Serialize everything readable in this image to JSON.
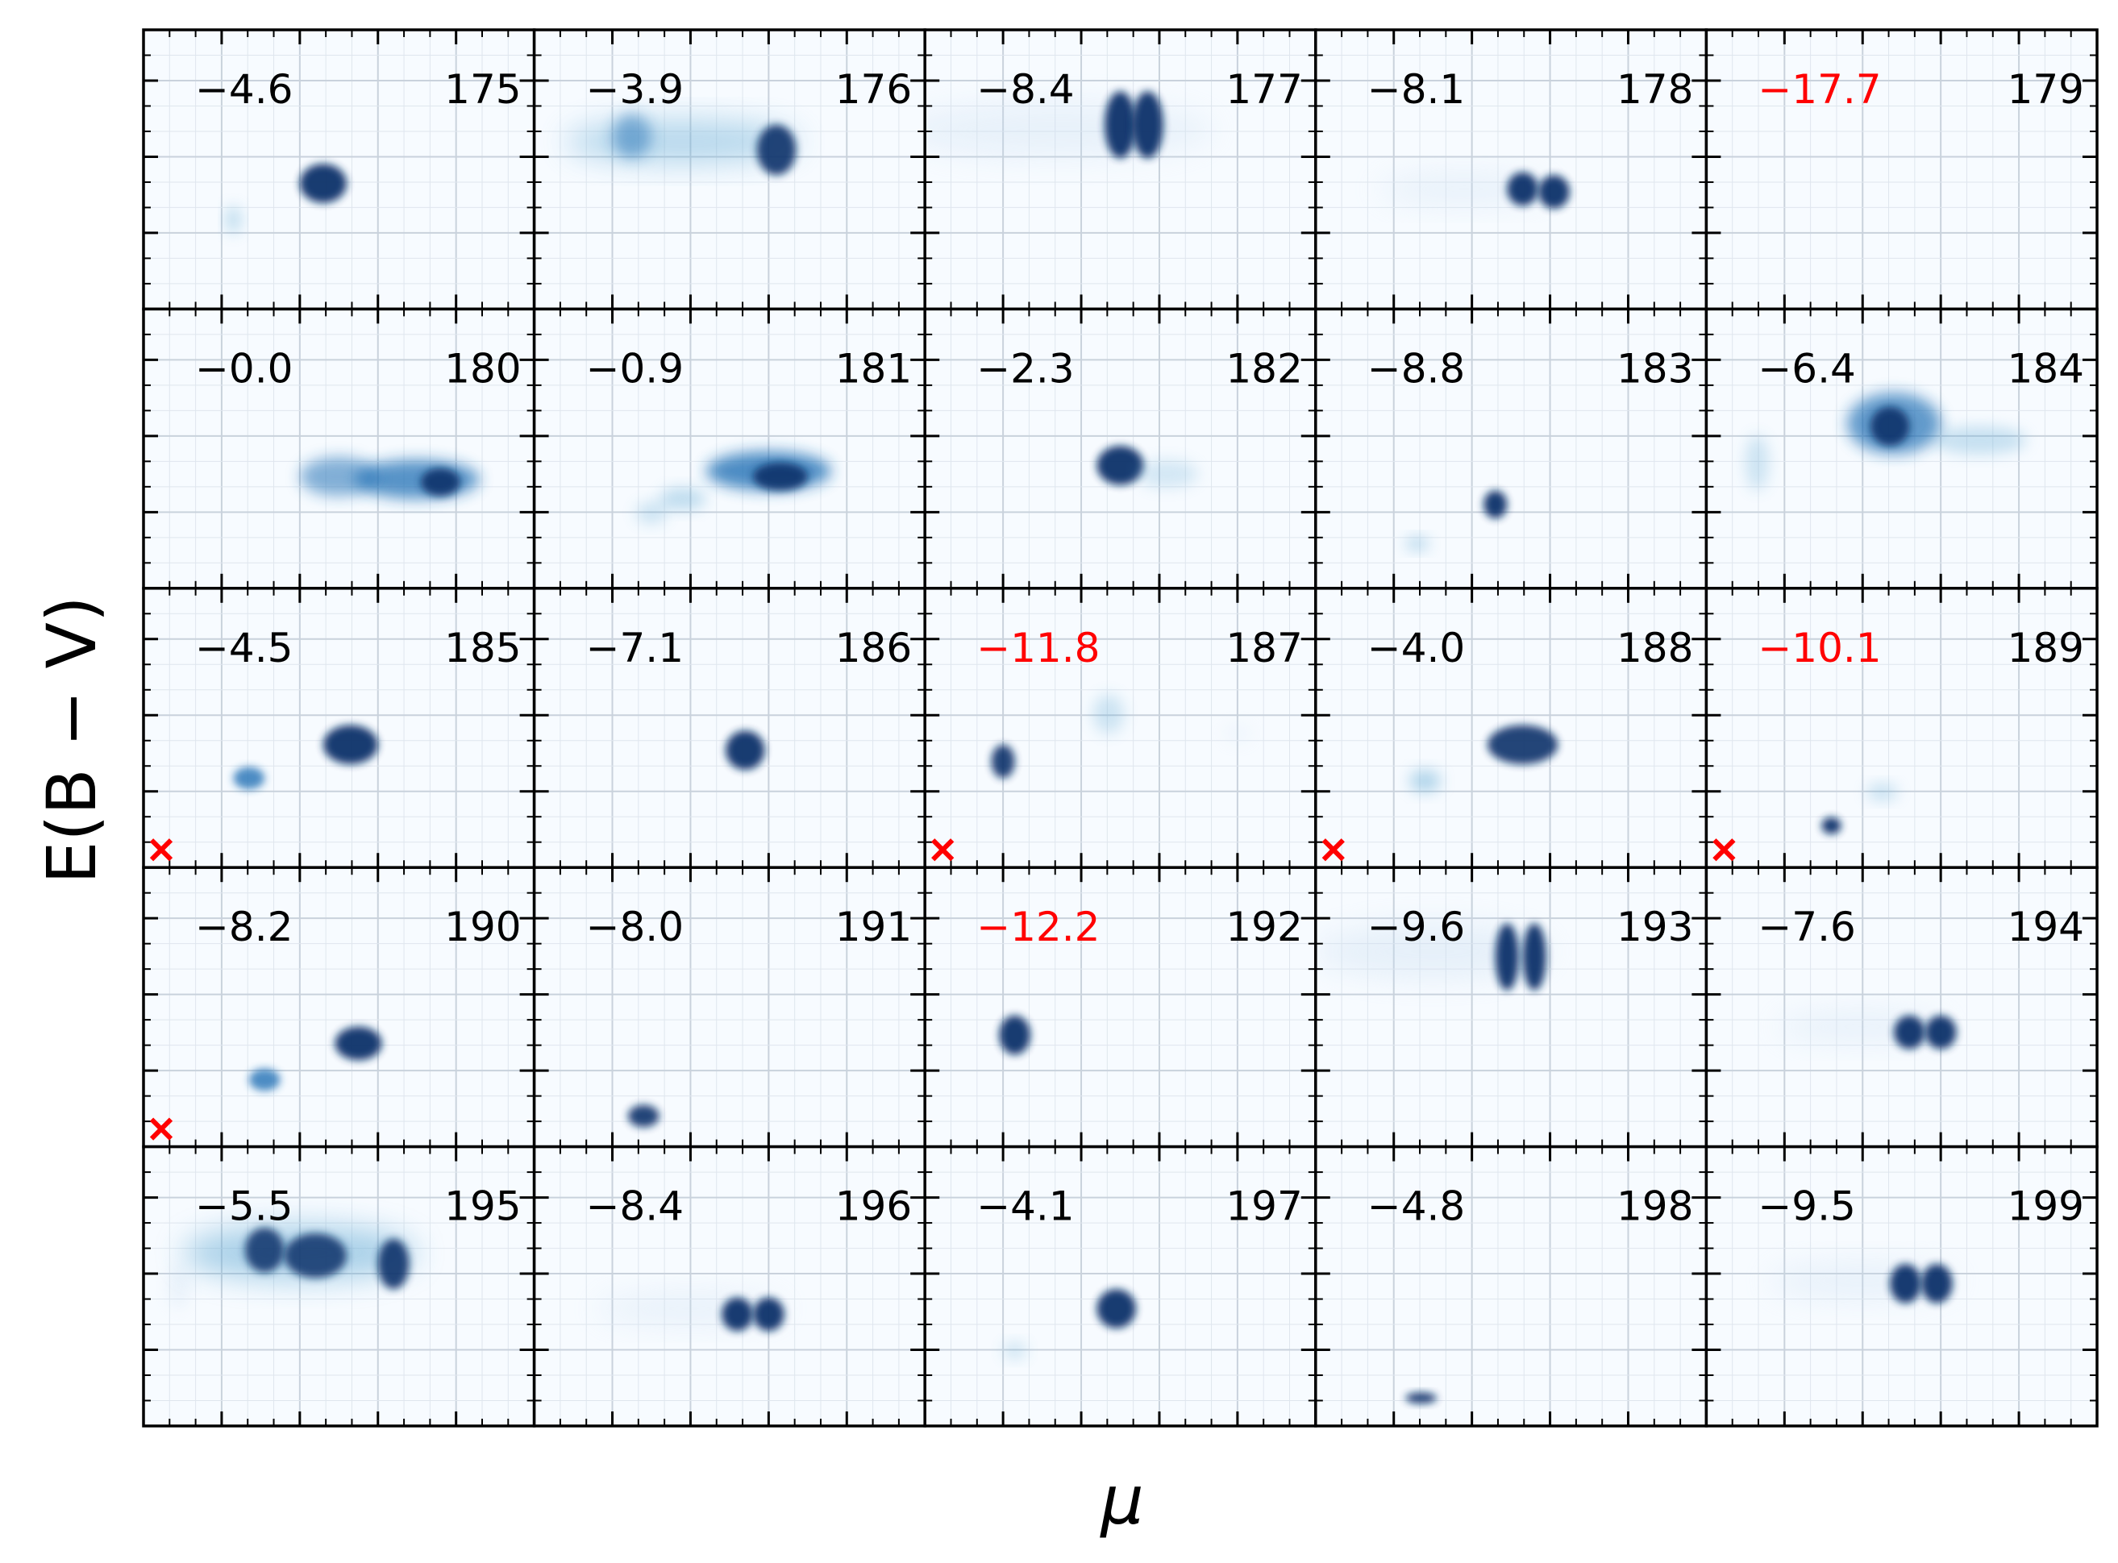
{
  "figure": {
    "xlabel": "μ",
    "ylabel": "E(B − V)",
    "colormap": "Blues",
    "colors": {
      "highlight": "#ff0000",
      "normal": "#000000",
      "peak": "#08306b",
      "low": "#f7fbff",
      "marker": "#ff0000"
    }
  },
  "chart_data": {
    "type": "heatmap",
    "grid": {
      "rows": 5,
      "cols": 5
    },
    "tick_labels_shown": false,
    "panels": [
      {
        "id": "175",
        "value": "−4.6",
        "highlight": false,
        "marker": false
      },
      {
        "id": "176",
        "value": "−3.9",
        "highlight": false,
        "marker": false
      },
      {
        "id": "177",
        "value": "−8.4",
        "highlight": false,
        "marker": false
      },
      {
        "id": "178",
        "value": "−8.1",
        "highlight": false,
        "marker": false
      },
      {
        "id": "179",
        "value": "−17.7",
        "highlight": true,
        "marker": false
      },
      {
        "id": "180",
        "value": "−0.0",
        "highlight": false,
        "marker": false
      },
      {
        "id": "181",
        "value": "−0.9",
        "highlight": false,
        "marker": false
      },
      {
        "id": "182",
        "value": "−2.3",
        "highlight": false,
        "marker": false
      },
      {
        "id": "183",
        "value": "−8.8",
        "highlight": false,
        "marker": false
      },
      {
        "id": "184",
        "value": "−6.4",
        "highlight": false,
        "marker": false
      },
      {
        "id": "185",
        "value": "−4.5",
        "highlight": false,
        "marker": true
      },
      {
        "id": "186",
        "value": "−7.1",
        "highlight": false,
        "marker": false
      },
      {
        "id": "187",
        "value": "−11.8",
        "highlight": true,
        "marker": true
      },
      {
        "id": "188",
        "value": "−4.0",
        "highlight": false,
        "marker": true
      },
      {
        "id": "189",
        "value": "−10.1",
        "highlight": true,
        "marker": true
      },
      {
        "id": "190",
        "value": "−8.2",
        "highlight": false,
        "marker": true
      },
      {
        "id": "191",
        "value": "−8.0",
        "highlight": false,
        "marker": false
      },
      {
        "id": "192",
        "value": "−12.2",
        "highlight": true,
        "marker": false
      },
      {
        "id": "193",
        "value": "−9.6",
        "highlight": false,
        "marker": false
      },
      {
        "id": "194",
        "value": "−7.6",
        "highlight": false,
        "marker": false
      },
      {
        "id": "195",
        "value": "−5.5",
        "highlight": false,
        "marker": false
      },
      {
        "id": "196",
        "value": "−8.4",
        "highlight": false,
        "marker": false
      },
      {
        "id": "197",
        "value": "−4.1",
        "highlight": false,
        "marker": false
      },
      {
        "id": "198",
        "value": "−4.8",
        "highlight": false,
        "marker": false
      },
      {
        "id": "199",
        "value": "−9.5",
        "highlight": false,
        "marker": false
      }
    ]
  }
}
